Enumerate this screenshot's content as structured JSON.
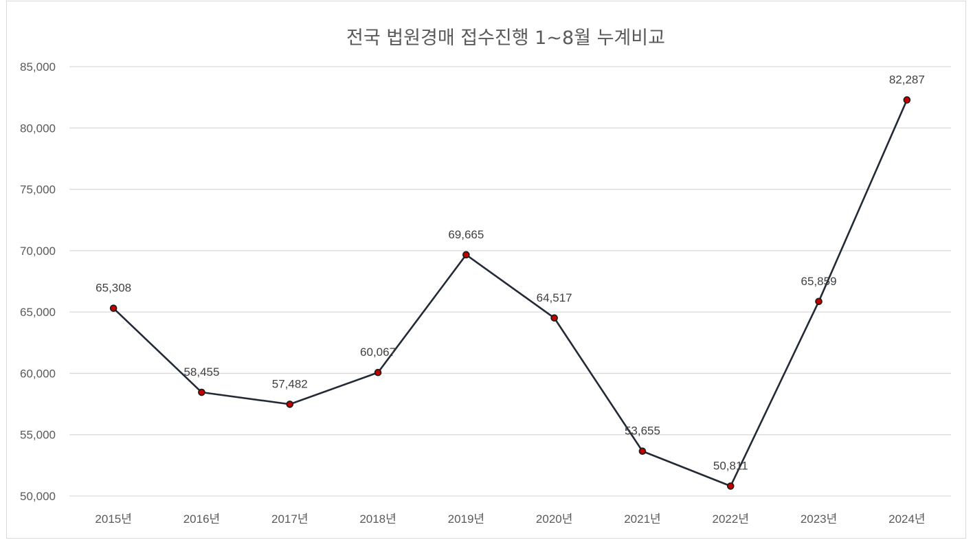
{
  "chart_data": {
    "type": "line",
    "title": "전국 법원경매 접수진행 1~8월 누계비교",
    "categories": [
      "2015년",
      "2016년",
      "2017년",
      "2018년",
      "2019년",
      "2020년",
      "2021년",
      "2022년",
      "2023년",
      "2024년"
    ],
    "series": [
      {
        "values": [
          65308,
          58455,
          57482,
          60067,
          69665,
          64517,
          53655,
          50811,
          65859,
          82287
        ],
        "labels": [
          "65,308",
          "58,455",
          "57,482",
          "60,067",
          "69,665",
          "64,517",
          "53,655",
          "50,811",
          "65,859",
          "82,287"
        ],
        "line_color": "#222a35",
        "marker_color": "#c00000"
      }
    ],
    "ylim": [
      50000,
      85000
    ],
    "y_ticks": [
      50000,
      55000,
      60000,
      65000,
      70000,
      75000,
      80000,
      85000
    ],
    "y_tick_labels": [
      "50,000",
      "55,000",
      "60,000",
      "65,000",
      "70,000",
      "75,000",
      "80,000",
      "85,000"
    ],
    "xlabel": "",
    "ylabel": "",
    "grid": true,
    "legend": "none"
  }
}
